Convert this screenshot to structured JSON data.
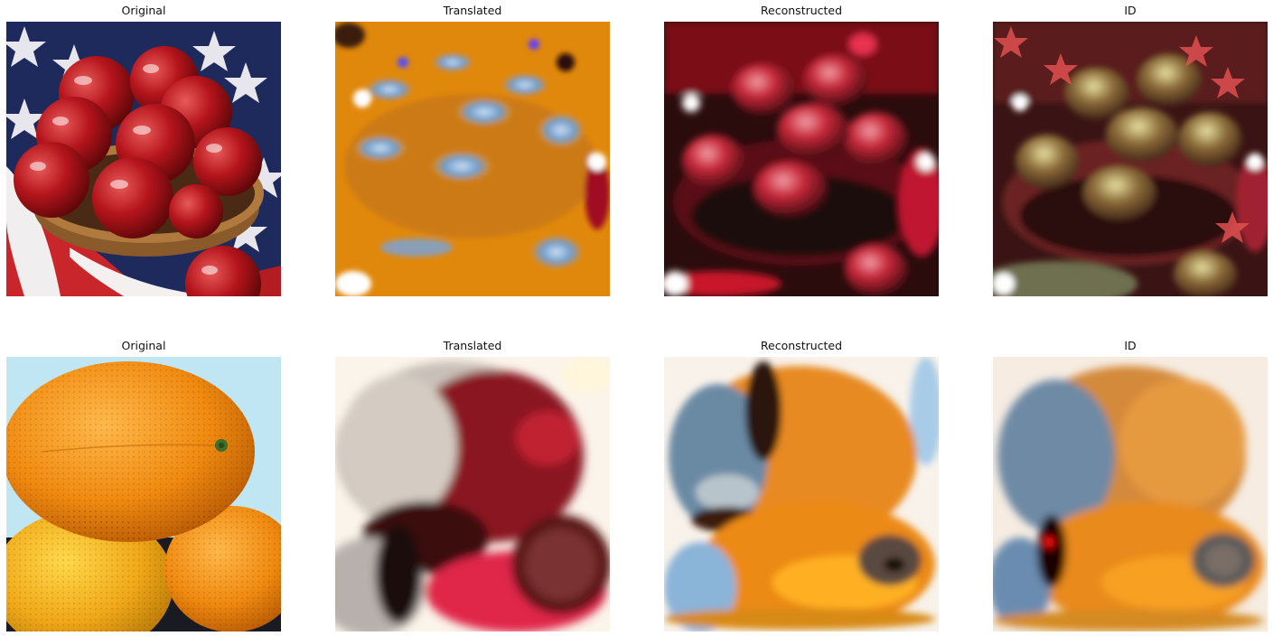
{
  "figure": {
    "rows": [
      {
        "subject": "apples",
        "panels": [
          {
            "title": "Original"
          },
          {
            "title": "Translated"
          },
          {
            "title": "Reconstructed"
          },
          {
            "title": "ID"
          }
        ]
      },
      {
        "subject": "oranges",
        "panels": [
          {
            "title": "Original"
          },
          {
            "title": "Translated"
          },
          {
            "title": "Reconstructed"
          },
          {
            "title": "ID"
          }
        ]
      }
    ]
  }
}
